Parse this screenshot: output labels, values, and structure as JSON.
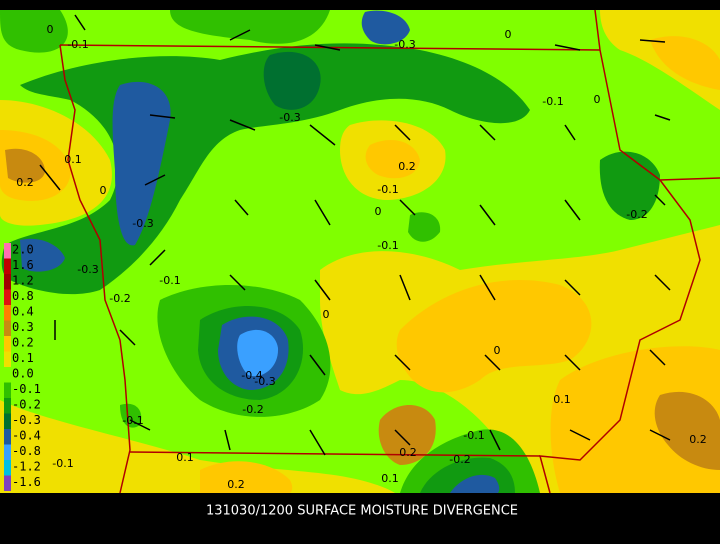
{
  "caption": "131030/1200 SURFACE MOISTURE DIVERGENCE",
  "legend": [
    {
      "label": "2.0",
      "color": "#ff70b0"
    },
    {
      "label": "1.6",
      "color": "#c00000"
    },
    {
      "label": "1.2",
      "color": "#a00000"
    },
    {
      "label": "0.8",
      "color": "#e01010"
    },
    {
      "label": "0.4",
      "color": "#ff8000"
    },
    {
      "label": "0.3",
      "color": "#c88a10"
    },
    {
      "label": "0.2",
      "color": "#ffc800"
    },
    {
      "label": "0.1",
      "color": "#f0e000"
    },
    {
      "label": "0.0",
      "color": "#80ff00"
    },
    {
      "label": "-0.1",
      "color": "#30c000"
    },
    {
      "label": "-0.2",
      "color": "#119a11"
    },
    {
      "label": "-0.3",
      "color": "#007030"
    },
    {
      "label": "-0.4",
      "color": "#1f5aa0"
    },
    {
      "label": "-0.8",
      "color": "#3aa0ff"
    },
    {
      "label": "-1.2",
      "color": "#00c0e0"
    },
    {
      "label": "-1.6",
      "color": "#8040c0"
    }
  ],
  "contour_labels": [
    "0",
    "-0.1",
    "-0.3",
    "0",
    "-0.1",
    "0",
    "-0.3",
    "0.1",
    "0.2",
    "0",
    "0.2",
    "-0.1",
    "0",
    "-0.2",
    "-0.3",
    "-0.1",
    "-0.3",
    "-0.1",
    "-0.2",
    "0",
    "0",
    "-0.4",
    "-0.3",
    "0.1",
    "-0.2",
    "-0.1",
    "-0.1",
    "0.2",
    "0.2",
    "-0.2",
    "-0.1",
    "0.1",
    "0.1",
    "0.2"
  ]
}
